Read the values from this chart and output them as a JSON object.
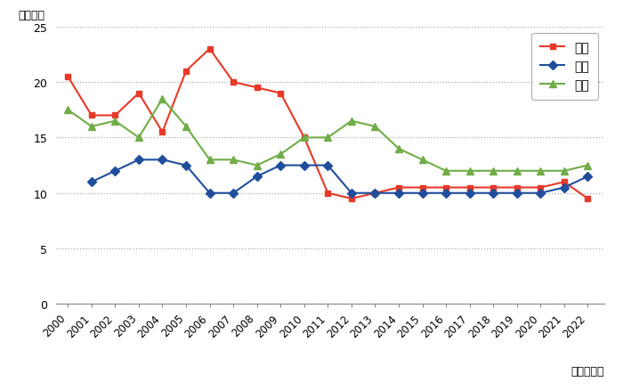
{
  "years": [
    2000,
    2001,
    2002,
    2003,
    2004,
    2005,
    2006,
    2007,
    2008,
    2009,
    2010,
    2011,
    2012,
    2013,
    2014,
    2015,
    2016,
    2017,
    2018,
    2019,
    2020,
    2021,
    2022
  ],
  "japan": [
    20.5,
    17.0,
    17.0,
    19.0,
    15.5,
    21.0,
    23.0,
    20.0,
    19.5,
    19.0,
    15.0,
    10.0,
    9.5,
    10.0,
    10.5,
    10.5,
    10.5,
    10.5,
    10.5,
    10.5,
    10.5,
    11.0,
    9.5
  ],
  "usa": [
    null,
    11.0,
    12.0,
    13.0,
    13.0,
    12.5,
    10.0,
    10.0,
    11.5,
    12.5,
    12.5,
    12.5,
    10.0,
    10.0,
    10.0,
    10.0,
    10.0,
    10.0,
    10.0,
    10.0,
    10.0,
    10.5,
    11.5
  ],
  "eu": [
    17.5,
    16.0,
    16.5,
    15.0,
    18.5,
    16.0,
    13.0,
    13.0,
    12.5,
    13.5,
    15.0,
    15.0,
    16.5,
    16.0,
    14.0,
    13.0,
    12.0,
    12.0,
    12.0,
    12.0,
    12.0,
    12.0,
    12.5
  ],
  "japan_color": "#e83828",
  "usa_color": "#1f4e9c",
  "eu_color": "#70ad47",
  "ylabel": "（月数）",
  "xlabel": "（承認年）",
  "ylim": [
    0,
    25
  ],
  "yticks": [
    0,
    5,
    10,
    15,
    20,
    25
  ],
  "legend_japan": "日本",
  "legend_usa": "米国",
  "legend_eu": "欧州",
  "background_color": "#ffffff",
  "grid_color": "#aaaaaa"
}
